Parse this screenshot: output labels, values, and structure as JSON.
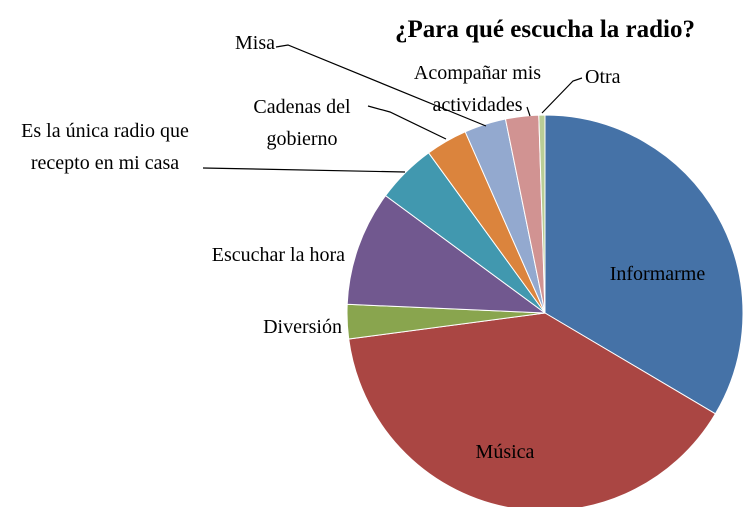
{
  "chart_data": {
    "type": "pie",
    "title": "¿Para qué escucha la radio?",
    "categories": [
      "Informarme",
      "Música",
      "Diversión",
      "Escuchar la hora",
      "Es la única radio que recepto en mi casa",
      "Cadenas del gobierno",
      "Misa",
      "Acompañar mis actividades",
      "Otra"
    ],
    "values": [
      33.5,
      39.4,
      2.8,
      9.4,
      4.9,
      3.4,
      3.4,
      2.7,
      0.5
    ],
    "colors": [
      "#4572A7",
      "#AA4643",
      "#89A54E",
      "#71588F",
      "#4198AF",
      "#DB843D",
      "#93A9CF",
      "#D19392",
      "#B9CD96"
    ]
  }
}
